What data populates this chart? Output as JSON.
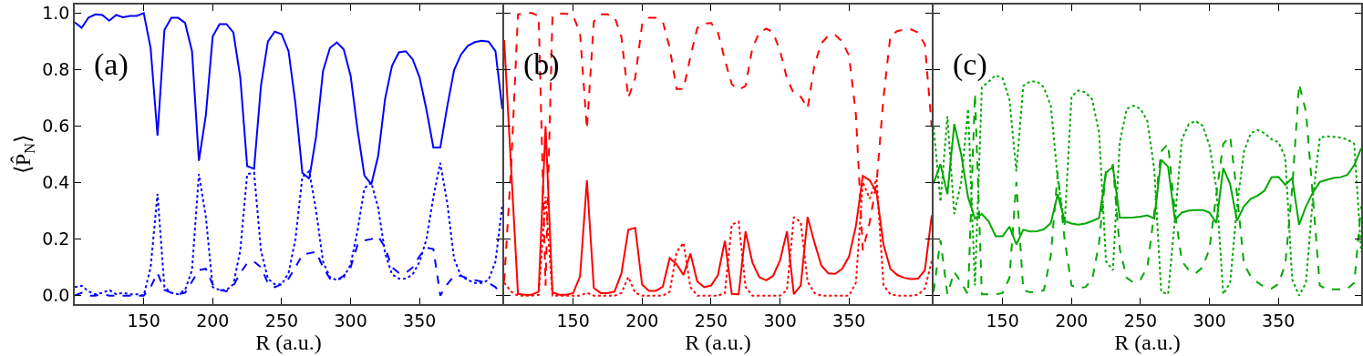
{
  "chart_data": [
    {
      "type": "line",
      "xlabel": "R (a.u.)",
      "ylabel": "⟨P̂$_{N}$⟩",
      "annotations": [
        "(a)"
      ],
      "x": [
        100,
        105,
        110,
        115,
        120,
        125,
        130,
        135,
        140,
        145,
        150,
        155,
        160,
        165,
        170,
        175,
        180,
        185,
        190,
        195,
        200,
        205,
        210,
        215,
        220,
        225,
        230,
        235,
        240,
        245,
        250,
        255,
        260,
        265,
        270,
        275,
        280,
        285,
        290,
        295,
        300,
        305,
        310,
        315,
        320,
        325,
        330,
        335,
        340,
        345,
        350,
        355,
        360,
        365,
        370,
        375,
        380,
        385,
        390,
        395,
        400,
        405,
        410
      ],
      "xlim": [
        100,
        410
      ],
      "ylim": [
        -0.03,
        1.03
      ],
      "xticks": [
        150,
        200,
        250,
        300,
        350
      ],
      "yticks": [
        {
          "value": 0,
          "label": "0.0"
        },
        0.2,
        0.4,
        0.6,
        0.8,
        {
          "value": 1,
          "label": "1.0"
        }
      ],
      "series": [
        {
          "color": "#0000ff",
          "line_style": "solid",
          "values": [
            0.967,
            0.948,
            0.984,
            0.995,
            0.993,
            0.973,
            0.993,
            0.985,
            0.99,
            0.99,
            1.0,
            0.876,
            0.566,
            0.94,
            0.983,
            0.983,
            0.965,
            0.865,
            0.477,
            0.637,
            0.917,
            0.961,
            0.961,
            0.931,
            0.772,
            0.458,
            0.449,
            0.743,
            0.899,
            0.934,
            0.925,
            0.865,
            0.68,
            0.435,
            0.414,
            0.564,
            0.795,
            0.876,
            0.896,
            0.871,
            0.778,
            0.587,
            0.425,
            0.394,
            0.495,
            0.697,
            0.813,
            0.861,
            0.865,
            0.836,
            0.772,
            0.657,
            0.524,
            0.524,
            0.668,
            0.798,
            0.853,
            0.884,
            0.897,
            0.902,
            0.899,
            0.865,
            0.66
          ]
        },
        {
          "color": "#0000ff",
          "line_style": "dotted",
          "values": [
            0.03,
            0.035,
            0.015,
            0.005,
            0.01,
            0.02,
            0.005,
            0.01,
            0.005,
            0.005,
            0.0,
            0.1,
            0.36,
            0.03,
            0.01,
            0.005,
            0.02,
            0.09,
            0.43,
            0.28,
            0.03,
            0.02,
            0.02,
            0.04,
            0.16,
            0.43,
            0.435,
            0.16,
            0.06,
            0.04,
            0.04,
            0.08,
            0.2,
            0.42,
            0.44,
            0.3,
            0.12,
            0.065,
            0.055,
            0.065,
            0.11,
            0.23,
            0.38,
            0.4,
            0.31,
            0.15,
            0.075,
            0.06,
            0.06,
            0.075,
            0.12,
            0.2,
            0.35,
            0.47,
            0.33,
            0.13,
            0.07,
            0.055,
            0.045,
            0.045,
            0.055,
            0.12,
            0.32
          ]
        },
        {
          "color": "#0000ff",
          "line_style": "dashed",
          "values": [
            0.0,
            0.01,
            0.0,
            0.0,
            0.005,
            0.0,
            0.0,
            0.0,
            0.0,
            0.0,
            0.0,
            0.03,
            0.08,
            0.02,
            0.01,
            0.005,
            0.01,
            0.05,
            0.09,
            0.095,
            0.04,
            0.02,
            0.015,
            0.035,
            0.08,
            0.115,
            0.12,
            0.1,
            0.045,
            0.03,
            0.04,
            0.06,
            0.1,
            0.145,
            0.15,
            0.155,
            0.1,
            0.06,
            0.055,
            0.07,
            0.1,
            0.18,
            0.195,
            0.2,
            0.21,
            0.17,
            0.1,
            0.08,
            0.08,
            0.1,
            0.14,
            0.17,
            0.165,
            0.0,
            0.04,
            0.07,
            0.07,
            0.06,
            0.055,
            0.05,
            0.045,
            0.03,
            0.0
          ]
        }
      ]
    },
    {
      "type": "line",
      "xlabel": "R (a.u.)",
      "annotations": [
        "(b)"
      ],
      "tick_labels": "x",
      "x": [
        100,
        105,
        110,
        115,
        120,
        125,
        130,
        135,
        140,
        145,
        150,
        155,
        160,
        165,
        170,
        175,
        180,
        185,
        190,
        195,
        200,
        205,
        210,
        215,
        220,
        225,
        230,
        235,
        240,
        245,
        250,
        255,
        260,
        265,
        270,
        275,
        280,
        285,
        290,
        295,
        300,
        305,
        310,
        315,
        320,
        325,
        330,
        335,
        340,
        345,
        350,
        355,
        360,
        365,
        370,
        375,
        380,
        385,
        390,
        395,
        400,
        405,
        410
      ],
      "xlim": [
        100,
        410
      ],
      "ylim": [
        -0.03,
        1.03
      ],
      "xticks": [
        150,
        200,
        250,
        300,
        350
      ],
      "yticks": [
        0,
        0.2,
        0.4,
        0.6,
        0.8,
        1
      ],
      "series": [
        {
          "color": "#ff0000",
          "line_style": "dashed",
          "values": [
            0.05,
            0.45,
            0.995,
            1.0,
            1.0,
            0.99,
            0.035,
            0.985,
            0.998,
            0.998,
            0.99,
            0.93,
            0.59,
            0.97,
            0.995,
            0.995,
            0.987,
            0.915,
            0.7,
            0.77,
            0.96,
            0.983,
            0.983,
            0.97,
            0.877,
            0.731,
            0.731,
            0.845,
            0.947,
            0.963,
            0.965,
            0.931,
            0.834,
            0.748,
            0.729,
            0.742,
            0.877,
            0.931,
            0.945,
            0.931,
            0.866,
            0.769,
            0.715,
            0.704,
            0.663,
            0.818,
            0.893,
            0.92,
            0.922,
            0.899,
            0.85,
            0.64,
            0.16,
            0.26,
            0.4,
            0.7,
            0.92,
            0.936,
            0.942,
            0.942,
            0.931,
            0.888,
            0.597
          ]
        },
        {
          "color": "#ff0000",
          "line_style": "solid",
          "values": [
            0.904,
            0.456,
            0.006,
            0.003,
            0.003,
            0.014,
            0.6,
            0.011,
            0.003,
            0.003,
            0.009,
            0.068,
            0.408,
            0.027,
            0.009,
            0.009,
            0.014,
            0.079,
            0.233,
            0.24,
            0.039,
            0.017,
            0.017,
            0.032,
            0.133,
            0.111,
            0.073,
            0.149,
            0.05,
            0.03,
            0.036,
            0.073,
            0.194,
            0.006,
            0.005,
            0.227,
            0.117,
            0.065,
            0.054,
            0.07,
            0.125,
            0.227,
            0.005,
            0.036,
            0.278,
            0.187,
            0.106,
            0.079,
            0.077,
            0.095,
            0.138,
            0.246,
            0.424,
            0.408,
            0.365,
            0.181,
            0.095,
            0.073,
            0.063,
            0.059,
            0.06,
            0.09,
            0.284
          ]
        },
        {
          "color": "#ff0000",
          "line_style": "dotted",
          "values": [
            0.046,
            0.014,
            0.0,
            0.0,
            0.0,
            0.003,
            0.35,
            0.0,
            0.0,
            0.0,
            0.0,
            0.0,
            0.01,
            0.0,
            0.0,
            0.0,
            0.0,
            0.009,
            0.066,
            0.01,
            0.0,
            0.0,
            0.0,
            0.0,
            0.014,
            0.154,
            0.187,
            0.03,
            0.0,
            0.0,
            0.0,
            0.0,
            0.009,
            0.251,
            0.262,
            0.03,
            0.0,
            0.0,
            0.0,
            0.0,
            0.0,
            0.019,
            0.278,
            0.26,
            0.049,
            0.009,
            0.0,
            0.0,
            0.0,
            0.0,
            0.0,
            0.046,
            0.402,
            0.343,
            0.413,
            0.036,
            0.005,
            0.0,
            0.0,
            0.0,
            0.003,
            0.025,
            0.122
          ]
        }
      ]
    },
    {
      "type": "line",
      "xlabel": "R (a.u.)",
      "annotations": [
        "(c)"
      ],
      "tick_labels": "x",
      "x": [
        100,
        105,
        110,
        115,
        120,
        125,
        130,
        135,
        140,
        145,
        150,
        155,
        160,
        165,
        170,
        175,
        180,
        185,
        190,
        195,
        200,
        205,
        210,
        215,
        220,
        225,
        230,
        235,
        240,
        245,
        250,
        255,
        260,
        265,
        270,
        275,
        280,
        285,
        290,
        295,
        300,
        305,
        310,
        315,
        320,
        325,
        330,
        335,
        340,
        345,
        350,
        355,
        360,
        365,
        370,
        375,
        380,
        385,
        390,
        395,
        400,
        405,
        410
      ],
      "xlim": [
        100,
        410
      ],
      "ylim": [
        -0.03,
        1.03
      ],
      "xticks": [
        150,
        200,
        250,
        300,
        350
      ],
      "yticks": [
        0,
        0.2,
        0.4,
        0.6,
        0.8,
        1
      ],
      "series": [
        {
          "color": "#00a800",
          "line_style": "solid",
          "values": [
            0.397,
            0.465,
            0.359,
            0.607,
            0.5,
            0.348,
            0.273,
            0.289,
            0.262,
            0.21,
            0.21,
            0.244,
            0.181,
            0.233,
            0.227,
            0.228,
            0.235,
            0.257,
            0.359,
            0.264,
            0.255,
            0.251,
            0.255,
            0.264,
            0.275,
            0.435,
            0.456,
            0.276,
            0.276,
            0.277,
            0.279,
            0.284,
            0.273,
            0.481,
            0.456,
            0.268,
            0.294,
            0.301,
            0.303,
            0.303,
            0.294,
            0.257,
            0.451,
            0.394,
            0.265,
            0.316,
            0.343,
            0.354,
            0.372,
            0.419,
            0.42,
            0.392,
            0.416,
            0.251,
            0.316,
            0.365,
            0.402,
            0.41,
            0.416,
            0.419,
            0.427,
            0.462,
            0.521
          ]
        },
        {
          "color": "#00a800",
          "line_style": "dotted",
          "values": [
            0.597,
            0.332,
            0.634,
            0.289,
            0.402,
            0.661,
            0.036,
            0.737,
            0.758,
            0.78,
            0.769,
            0.694,
            0.44,
            0.742,
            0.758,
            0.758,
            0.737,
            0.672,
            0.413,
            0.251,
            0.704,
            0.726,
            0.72,
            0.694,
            0.575,
            0.122,
            0.09,
            0.543,
            0.661,
            0.672,
            0.661,
            0.618,
            0.446,
            0.014,
            0.005,
            0.273,
            0.553,
            0.607,
            0.618,
            0.602,
            0.532,
            0.381,
            0.005,
            0.046,
            0.316,
            0.51,
            0.575,
            0.586,
            0.575,
            0.553,
            0.543,
            0.489,
            0.057,
            0.0,
            0.046,
            0.348,
            0.559,
            0.564,
            0.562,
            0.559,
            0.553,
            0.537,
            0.154
          ]
        },
        {
          "color": "#00a800",
          "line_style": "dashed",
          "values": [
            0.014,
            0.197,
            0.005,
            0.084,
            0.046,
            0.003,
            0.715,
            0.005,
            0.005,
            0.005,
            0.009,
            0.063,
            0.402,
            0.019,
            0.012,
            0.012,
            0.019,
            0.143,
            0.435,
            0.197,
            0.036,
            0.027,
            0.03,
            0.057,
            0.187,
            0.446,
            0.462,
            0.165,
            0.063,
            0.046,
            0.057,
            0.1,
            0.294,
            0.51,
            0.537,
            0.294,
            0.122,
            0.09,
            0.079,
            0.1,
            0.165,
            0.359,
            0.537,
            0.564,
            0.359,
            0.111,
            0.068,
            0.046,
            0.03,
            0.025,
            0.041,
            0.111,
            0.381,
            0.748,
            0.65,
            0.348,
            0.036,
            0.023,
            0.022,
            0.022,
            0.025,
            0.046,
            0.316
          ]
        }
      ]
    }
  ]
}
